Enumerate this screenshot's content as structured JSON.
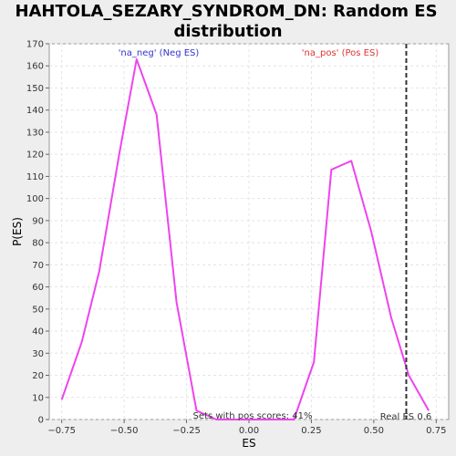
{
  "chart_data": {
    "type": "line",
    "title_line1": "HAHTOLA_SEZARY_SYNDROM_DN: Random ES",
    "title_line2": "distribution",
    "xlabel": "ES",
    "ylabel": "P(ES)",
    "xlim": [
      -0.8,
      0.8
    ],
    "ylim": [
      0,
      170
    ],
    "x_ticks": [
      -0.75,
      -0.5,
      -0.25,
      0.0,
      0.25,
      0.5,
      0.75
    ],
    "x_tick_labels": [
      "−0.75",
      "−0.50",
      "−0.25",
      "0.00",
      "0.25",
      "0.50",
      "0.75"
    ],
    "y_ticks": [
      0,
      10,
      20,
      30,
      40,
      50,
      60,
      70,
      80,
      90,
      100,
      110,
      120,
      130,
      140,
      150,
      160,
      170
    ],
    "y_tick_labels": [
      "0",
      "10",
      "20",
      "30",
      "40",
      "50",
      "60",
      "70",
      "80",
      "90",
      "100",
      "110",
      "120",
      "130",
      "140",
      "150",
      "160",
      "170"
    ],
    "grid": true,
    "line_color": "#ee44ee",
    "series": [
      {
        "x": [
          -0.75,
          -0.67,
          -0.6,
          -0.52,
          -0.45,
          -0.37,
          -0.29,
          -0.21,
          -0.13,
          -0.06,
          0.02,
          0.1,
          0.18,
          0.26,
          0.33,
          0.41,
          0.49,
          0.57,
          0.64,
          0.72
        ],
        "values": [
          9,
          35,
          67,
          120,
          163,
          138,
          53,
          4,
          0,
          0,
          0,
          0,
          0,
          26,
          113,
          117,
          85,
          46,
          20,
          4
        ]
      }
    ],
    "real_es": 0.63,
    "real_es_color": "#333333",
    "annotations": {
      "neg_label": "'na_neg' (Neg ES)",
      "neg_color": "#3333cc",
      "pos_label": "'na_pos' (Pos ES)",
      "pos_color": "#dd3333",
      "sets_text": "Sets with pos scores: 41%",
      "real_es_text": "Real ES 0.6"
    }
  }
}
